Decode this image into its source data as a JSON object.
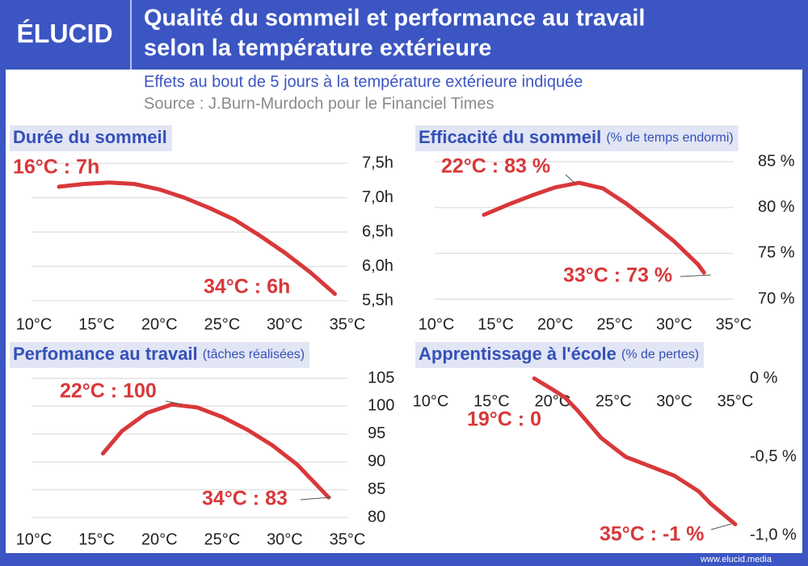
{
  "header": {
    "logo": "ÉLUCID",
    "title_lines": [
      "Qualité du sommeil et performance au travail",
      "selon la température extérieure"
    ],
    "subtitle": "Effets au bout de 5 jours à la température extérieure indiquée",
    "source": "Source : J.Burn-Murdoch pour le Financiel Times"
  },
  "chart_data": [
    {
      "type": "line",
      "title": "Durée du sommeil",
      "color": "#d8383a",
      "x": [
        12,
        14,
        16,
        18,
        20,
        22,
        24,
        26,
        28,
        30,
        32,
        34
      ],
      "values": [
        7.16,
        7.2,
        7.22,
        7.2,
        7.12,
        7.0,
        6.85,
        6.68,
        6.45,
        6.2,
        5.92,
        5.6
      ],
      "xlim": [
        10,
        35
      ],
      "xticks": [
        {
          "value": 10,
          "label": "10°C"
        },
        {
          "value": 15,
          "label": "15°C"
        },
        {
          "value": 20,
          "label": "20°C"
        },
        {
          "value": 25,
          "label": "25°C"
        },
        {
          "value": 30,
          "label": "30°C"
        },
        {
          "value": 35,
          "label": "35°C"
        }
      ],
      "ylim": [
        5.5,
        7.5
      ],
      "yticks": [
        {
          "value": 7.5,
          "label": "7,5h"
        },
        {
          "value": 7,
          "label": "7,0h"
        },
        {
          "value": 6.5,
          "label": "6,5h"
        },
        {
          "value": 6,
          "label": "6,0h"
        },
        {
          "value": 5.5,
          "label": "5,5h"
        }
      ],
      "grid": true,
      "annotations": [
        "16°C : 7h",
        "34°C : 6h"
      ]
    },
    {
      "type": "line",
      "title": "Efficacité du sommeil",
      "unit": "(% de temps endormi)",
      "color": "#d8383a",
      "x": [
        14,
        16,
        18,
        20,
        22,
        24,
        26,
        28,
        30,
        32,
        32.5
      ],
      "values": [
        79.2,
        80.3,
        81.3,
        82.2,
        82.7,
        82.1,
        80.4,
        78.4,
        76.3,
        73.8,
        72.9
      ],
      "xlim": [
        10,
        35
      ],
      "xticks": [
        {
          "value": 10,
          "label": "10°C"
        },
        {
          "value": 15,
          "label": "15°C"
        },
        {
          "value": 20,
          "label": "20°C"
        },
        {
          "value": 25,
          "label": "25°C"
        },
        {
          "value": 30,
          "label": "30°C"
        },
        {
          "value": 35,
          "label": "35°C"
        }
      ],
      "ylim": [
        70,
        85
      ],
      "yticks": [
        {
          "value": 85,
          "label": "85 %"
        },
        {
          "value": 80,
          "label": "80 %"
        },
        {
          "value": 75,
          "label": "75 %"
        },
        {
          "value": 70,
          "label": "70 %"
        }
      ],
      "grid": true,
      "annotations": [
        "22°C : 83 %",
        "33°C : 73 %"
      ]
    },
    {
      "type": "line",
      "title": "Perfomance au travail",
      "unit": "(tâches réalisées)",
      "color": "#d8383a",
      "x": [
        15.5,
        17,
        19,
        21,
        23,
        25,
        27,
        29,
        31,
        33.5
      ],
      "values": [
        91.5,
        95.5,
        98.8,
        100.3,
        99.8,
        98.1,
        95.8,
        93,
        89.5,
        83.6
      ],
      "xlim": [
        10,
        35
      ],
      "xticks": [
        {
          "value": 10,
          "label": "10°C"
        },
        {
          "value": 15,
          "label": "15°C"
        },
        {
          "value": 20,
          "label": "20°C"
        },
        {
          "value": 25,
          "label": "25°C"
        },
        {
          "value": 30,
          "label": "30°C"
        },
        {
          "value": 35,
          "label": "35°C"
        }
      ],
      "ylim": [
        80,
        105
      ],
      "yticks": [
        105,
        100,
        95,
        90,
        85,
        80
      ],
      "grid": true,
      "annotations": [
        "22°C : 100",
        "34°C : 83"
      ]
    },
    {
      "type": "line",
      "title": "Apprentissage à l'école",
      "unit": "(% de pertes)",
      "color": "#d8383a",
      "x": [
        18.5,
        20,
        21,
        22,
        24,
        26,
        28,
        30,
        32,
        33,
        35
      ],
      "values": [
        0,
        -0.07,
        -0.12,
        -0.2,
        -0.38,
        -0.5,
        -0.56,
        -0.62,
        -0.72,
        -0.8,
        -0.93
      ],
      "xlim": [
        10,
        35
      ],
      "xticks": [
        {
          "value": 10,
          "label": "10°C"
        },
        {
          "value": 15,
          "label": "15°C"
        },
        {
          "value": 20,
          "label": "20°C"
        },
        {
          "value": 25,
          "label": "25°C"
        },
        {
          "value": 30,
          "label": "30°C"
        },
        {
          "value": 35,
          "label": "35°C"
        }
      ],
      "xaxis_position": "top",
      "ylim": [
        -1,
        0
      ],
      "yticks": [
        {
          "value": 0,
          "label": "0 %"
        },
        {
          "value": -0.5,
          "label": "-0,5 %"
        },
        {
          "value": -1,
          "label": "-1,0 %"
        }
      ],
      "grid": false,
      "annotations": [
        "19°C : 0",
        "35°C : -1 %"
      ]
    }
  ],
  "footer": "www.elucid.media"
}
